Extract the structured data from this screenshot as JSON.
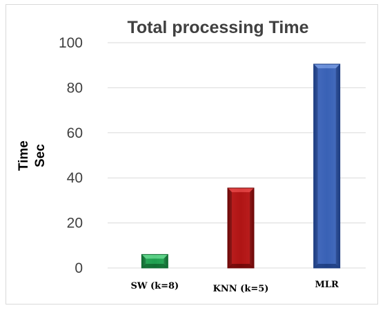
{
  "chart_data": {
    "type": "bar",
    "title": "Total processing  Time",
    "ylabel_lines": [
      "Time",
      "Sec"
    ],
    "xlabel": "",
    "categories": [
      "SW (k=8)",
      "KNN (k=5)",
      "MLR"
    ],
    "values": [
      6,
      35.5,
      90.5
    ],
    "ylim": [
      0,
      100
    ],
    "yticks": [
      0,
      20,
      40,
      60,
      80,
      100
    ],
    "grid": true,
    "legend": "none",
    "colors": [
      "#1f9f4f",
      "#b01515",
      "#3a62b5"
    ],
    "colors_light": [
      "#5fd38a",
      "#e04343",
      "#6f93dc"
    ],
    "colors_dark": [
      "#0e6a30",
      "#6e0808",
      "#1c3c80"
    ]
  }
}
